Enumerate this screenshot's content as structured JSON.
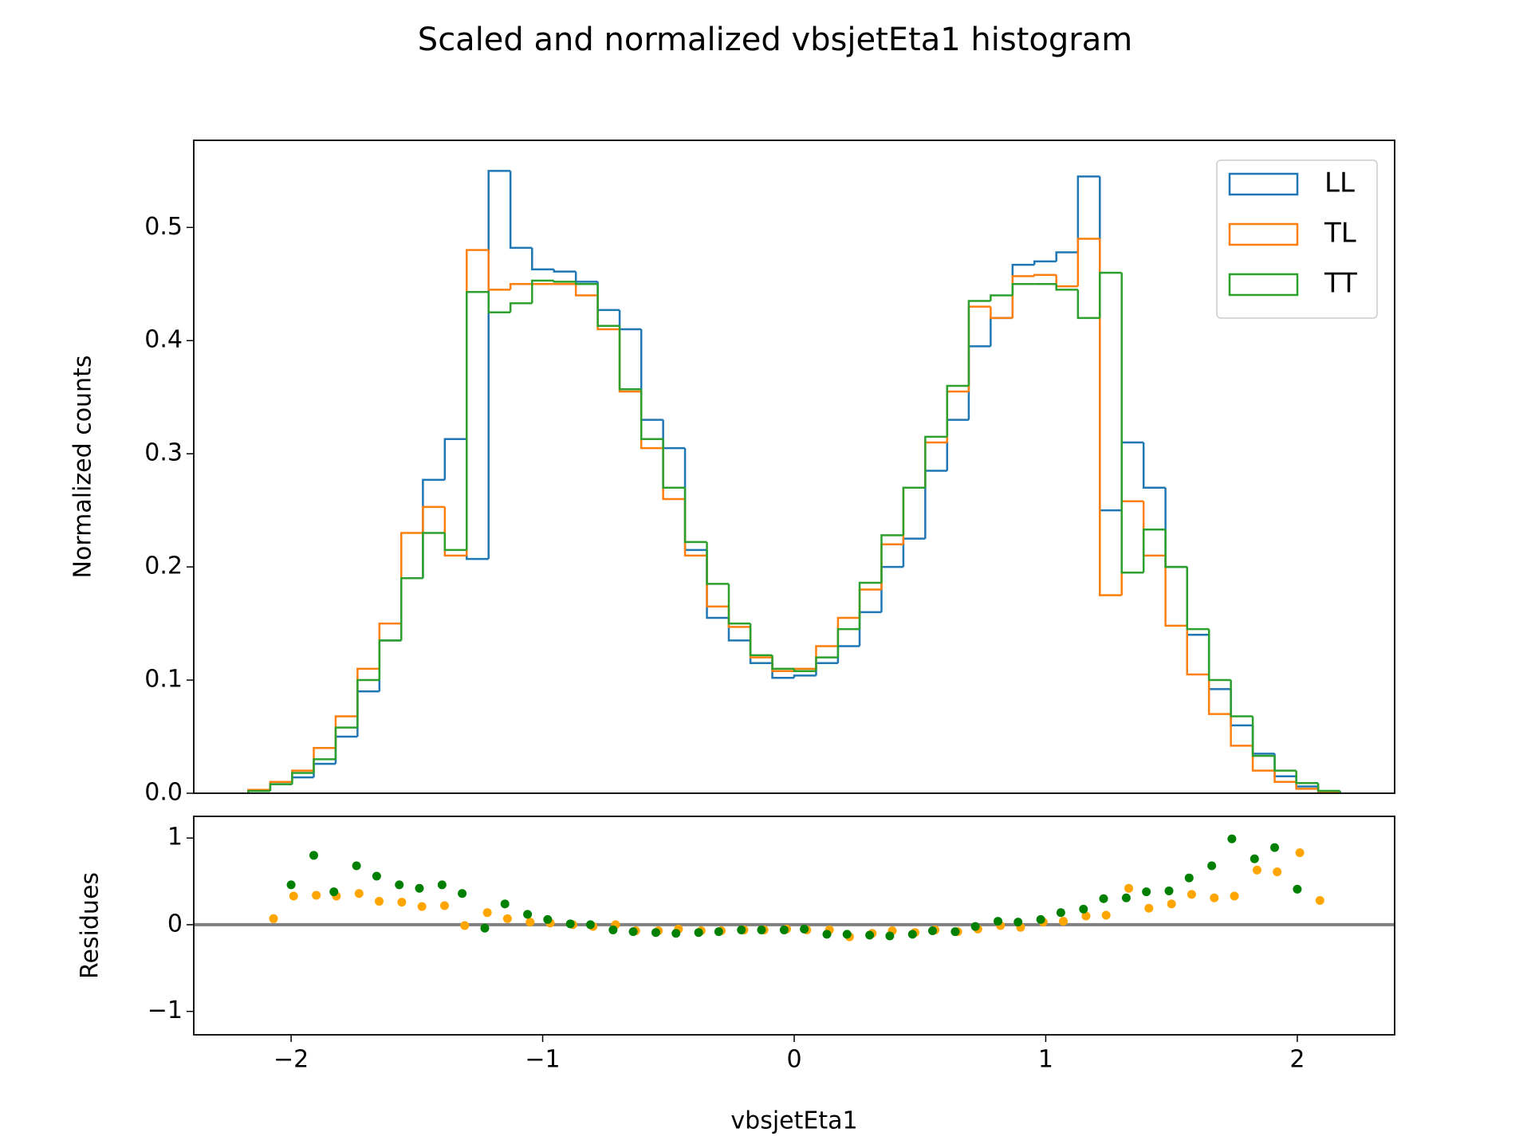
{
  "chart_data": [
    {
      "type": "histogram",
      "title": "Scaled and normalized vbsjetEta1 histogram",
      "ylabel": "Normalized counts",
      "bins": [
        -2.17,
        -2.083,
        -1.996,
        -1.91,
        -1.823,
        -1.736,
        -1.649,
        -1.562,
        -1.476,
        -1.389,
        -1.302,
        -1.215,
        -1.128,
        -1.042,
        -0.955,
        -0.868,
        -0.781,
        -0.694,
        -0.608,
        -0.521,
        -0.434,
        -0.347,
        -0.26,
        -0.174,
        -0.087,
        0,
        0.087,
        0.174,
        0.26,
        0.347,
        0.434,
        0.521,
        0.608,
        0.694,
        0.781,
        0.868,
        0.955,
        1.042,
        1.128,
        1.215,
        1.302,
        1.389,
        1.476,
        1.562,
        1.649,
        1.736,
        1.823,
        1.91,
        1.996,
        2.083,
        2.17
      ],
      "series": [
        {
          "name": "LL",
          "color": "#1f77b4",
          "values": [
            0.002,
            0.008,
            0.014,
            0.026,
            0.05,
            0.09,
            0.135,
            0.19,
            0.277,
            0.313,
            0.207,
            0.55,
            0.482,
            0.463,
            0.461,
            0.452,
            0.427,
            0.41,
            0.33,
            0.305,
            0.215,
            0.155,
            0.135,
            0.115,
            0.102,
            0.104,
            0.115,
            0.13,
            0.16,
            0.2,
            0.225,
            0.285,
            0.33,
            0.395,
            0.42,
            0.467,
            0.47,
            0.478,
            0.545,
            0.25,
            0.31,
            0.27,
            0.2,
            0.14,
            0.092,
            0.06,
            0.035,
            0.015,
            0.006,
            0.002
          ]
        },
        {
          "name": "TL",
          "color": "#ff7f0e",
          "values": [
            0.003,
            0.01,
            0.02,
            0.04,
            0.068,
            0.11,
            0.15,
            0.23,
            0.253,
            0.21,
            0.48,
            0.445,
            0.45,
            0.45,
            0.45,
            0.44,
            0.41,
            0.355,
            0.305,
            0.26,
            0.21,
            0.165,
            0.147,
            0.12,
            0.108,
            0.11,
            0.13,
            0.155,
            0.18,
            0.22,
            0.27,
            0.31,
            0.355,
            0.43,
            0.42,
            0.457,
            0.458,
            0.448,
            0.49,
            0.175,
            0.258,
            0.21,
            0.148,
            0.105,
            0.07,
            0.042,
            0.02,
            0.01,
            0.004,
            0.001
          ]
        },
        {
          "name": "TT",
          "color": "#2ca02c",
          "values": [
            0.002,
            0.008,
            0.018,
            0.03,
            0.058,
            0.1,
            0.135,
            0.19,
            0.23,
            0.215,
            0.443,
            0.425,
            0.433,
            0.453,
            0.452,
            0.45,
            0.413,
            0.357,
            0.313,
            0.27,
            0.222,
            0.185,
            0.15,
            0.122,
            0.11,
            0.108,
            0.12,
            0.145,
            0.186,
            0.228,
            0.27,
            0.315,
            0.36,
            0.435,
            0.44,
            0.45,
            0.45,
            0.445,
            0.42,
            0.46,
            0.195,
            0.233,
            0.2,
            0.145,
            0.1,
            0.068,
            0.033,
            0.02,
            0.009,
            0.002
          ]
        }
      ],
      "xlim": [
        -2.387,
        2.387
      ],
      "ylim": [
        0,
        0.577
      ],
      "yticks": [
        {
          "value": 0,
          "label": "0.0"
        },
        0.1,
        0.2,
        0.3,
        0.4,
        0.5
      ],
      "legend": "upper right"
    },
    {
      "type": "scatter",
      "xlabel": "vbsjetEta1",
      "ylabel": "Residues",
      "series": [
        {
          "color": "orange",
          "x": [
            -2.07,
            -1.99,
            -1.9,
            -1.82,
            -1.73,
            -1.65,
            -1.56,
            -1.48,
            -1.39,
            -1.31,
            -1.22,
            -1.14,
            -1.05,
            -0.97,
            -0.88,
            -0.8,
            -0.71,
            -0.63,
            -0.54,
            -0.46,
            -0.37,
            -0.29,
            -0.2,
            -0.12,
            -0.03,
            0.05,
            0.14,
            0.22,
            0.31,
            0.39,
            0.48,
            0.56,
            0.65,
            0.73,
            0.82,
            0.9,
            0.99,
            1.07,
            1.16,
            1.24,
            1.33,
            1.41,
            1.5,
            1.58,
            1.67,
            1.75,
            1.84,
            1.92,
            2.01,
            2.09
          ],
          "values": [
            0.07,
            0.33,
            0.34,
            0.33,
            0.36,
            0.27,
            0.26,
            0.21,
            0.22,
            -0.01,
            0.14,
            0.07,
            0.03,
            0.02,
            0,
            -0.02,
            0,
            -0.07,
            -0.07,
            -0.05,
            -0.07,
            -0.07,
            -0.06,
            -0.06,
            -0.05,
            -0.06,
            -0.06,
            -0.14,
            -0.1,
            -0.07,
            -0.09,
            -0.06,
            -0.08,
            -0.05,
            -0.01,
            -0.03,
            0.03,
            0.04,
            0.1,
            0.11,
            0.42,
            0.19,
            0.24,
            0.35,
            0.31,
            0.33,
            0.63,
            0.61,
            0.83,
            0.28
          ]
        },
        {
          "color": "green",
          "x": [
            -2,
            -1.91,
            -1.83,
            -1.74,
            -1.66,
            -1.57,
            -1.49,
            -1.4,
            -1.32,
            -1.23,
            -1.15,
            -1.06,
            -0.98,
            -0.89,
            -0.81,
            -0.72,
            -0.64,
            -0.55,
            -0.47,
            -0.38,
            -0.3,
            -0.21,
            -0.13,
            -0.04,
            0.04,
            0.13,
            0.21,
            0.3,
            0.38,
            0.47,
            0.55,
            0.64,
            0.72,
            0.81,
            0.89,
            0.98,
            1.06,
            1.15,
            1.23,
            1.32,
            1.4,
            1.49,
            1.57,
            1.66,
            1.74,
            1.83,
            1.91,
            2
          ],
          "values": [
            0.46,
            0.8,
            0.38,
            0.68,
            0.56,
            0.46,
            0.42,
            0.46,
            0.36,
            -0.04,
            0.24,
            0.12,
            0.06,
            0.01,
            0,
            -0.06,
            -0.08,
            -0.09,
            -0.1,
            -0.09,
            -0.08,
            -0.06,
            -0.06,
            -0.06,
            -0.05,
            -0.11,
            -0.11,
            -0.12,
            -0.13,
            -0.11,
            -0.07,
            -0.08,
            -0.02,
            0.04,
            0.03,
            0.06,
            0.14,
            0.18,
            0.3,
            0.31,
            0.38,
            0.39,
            0.54,
            0.68,
            0.99,
            0.76,
            0.89,
            0.41
          ]
        }
      ],
      "xlim": [
        -2.387,
        2.387
      ],
      "ylim": [
        -1.27,
        1.25
      ],
      "xticks": [
        {
          "value": -2,
          "label": "−2"
        },
        {
          "value": -1,
          "label": "−1"
        },
        0,
        1,
        2
      ],
      "yticks": [
        {
          "value": -1,
          "label": "−1"
        },
        0,
        1
      ],
      "hline": 0,
      "hline_color": "gray"
    }
  ]
}
